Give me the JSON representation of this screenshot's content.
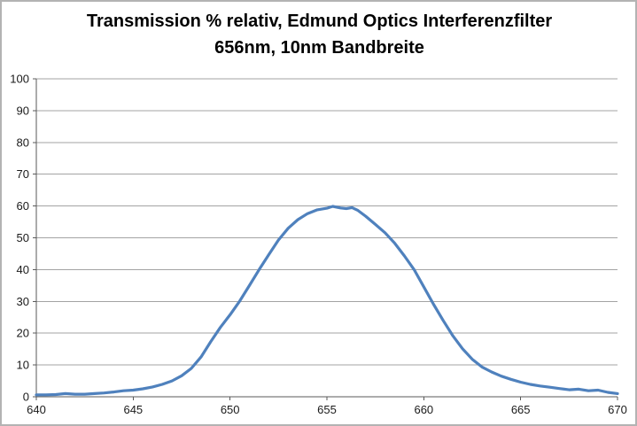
{
  "chart_data": {
    "type": "line",
    "title": "Transmission % relativ, Edmund Optics Interferenzfilter 656nm, 10nm Bandbreite",
    "title_lines": [
      "Transmission % relativ, Edmund Optics Interferenzfilter",
      "656nm, 10nm Bandbreite"
    ],
    "xlabel": "",
    "ylabel": "",
    "xlim": [
      640,
      670
    ],
    "ylim": [
      0,
      100
    ],
    "x_ticks": [
      640,
      645,
      650,
      655,
      660,
      665,
      670
    ],
    "y_ticks": [
      0,
      10,
      20,
      30,
      40,
      50,
      60,
      70,
      80,
      90,
      100
    ],
    "grid": "horizontal",
    "legend": "none",
    "series": [
      {
        "name": "Transmission % relativ",
        "color": "#4F81BD",
        "points": [
          [
            640.0,
            0.6
          ],
          [
            640.5,
            0.6
          ],
          [
            641.0,
            0.7
          ],
          [
            641.5,
            1.0
          ],
          [
            642.0,
            0.8
          ],
          [
            642.5,
            0.8
          ],
          [
            643.0,
            1.0
          ],
          [
            643.5,
            1.2
          ],
          [
            644.0,
            1.5
          ],
          [
            644.5,
            1.9
          ],
          [
            645.0,
            2.1
          ],
          [
            645.5,
            2.5
          ],
          [
            646.0,
            3.1
          ],
          [
            646.5,
            3.9
          ],
          [
            647.0,
            5.0
          ],
          [
            647.5,
            6.6
          ],
          [
            648.0,
            8.9
          ],
          [
            648.5,
            12.5
          ],
          [
            649.0,
            17.3
          ],
          [
            649.5,
            21.8
          ],
          [
            650.0,
            25.8
          ],
          [
            650.5,
            30.1
          ],
          [
            651.0,
            35.0
          ],
          [
            651.5,
            40.0
          ],
          [
            652.0,
            44.7
          ],
          [
            652.5,
            49.3
          ],
          [
            653.0,
            53.0
          ],
          [
            653.5,
            55.7
          ],
          [
            654.0,
            57.6
          ],
          [
            654.5,
            58.8
          ],
          [
            655.0,
            59.3
          ],
          [
            655.3,
            59.9
          ],
          [
            655.7,
            59.4
          ],
          [
            656.0,
            59.2
          ],
          [
            656.3,
            59.5
          ],
          [
            656.6,
            58.6
          ],
          [
            657.0,
            56.8
          ],
          [
            657.5,
            54.2
          ],
          [
            658.0,
            51.6
          ],
          [
            658.5,
            48.3
          ],
          [
            659.0,
            44.3
          ],
          [
            659.5,
            40.0
          ],
          [
            660.0,
            34.6
          ],
          [
            660.5,
            29.1
          ],
          [
            661.0,
            24.0
          ],
          [
            661.5,
            19.2
          ],
          [
            662.0,
            15.1
          ],
          [
            662.5,
            11.8
          ],
          [
            663.0,
            9.4
          ],
          [
            663.5,
            7.8
          ],
          [
            664.0,
            6.5
          ],
          [
            664.5,
            5.5
          ],
          [
            665.0,
            4.6
          ],
          [
            665.5,
            3.9
          ],
          [
            666.0,
            3.4
          ],
          [
            666.5,
            3.0
          ],
          [
            667.0,
            2.6
          ],
          [
            667.5,
            2.2
          ],
          [
            668.0,
            2.4
          ],
          [
            668.5,
            1.9
          ],
          [
            669.0,
            2.1
          ],
          [
            669.5,
            1.4
          ],
          [
            670.0,
            1.0
          ]
        ]
      }
    ]
  },
  "colors": {
    "background": "#FFFFFF",
    "frame_border": "#B3B3B3",
    "gridline": "#A3A3A3",
    "axis": "#595959",
    "tick_text": "#1A1A1A",
    "series_line": "#4F81BD"
  }
}
